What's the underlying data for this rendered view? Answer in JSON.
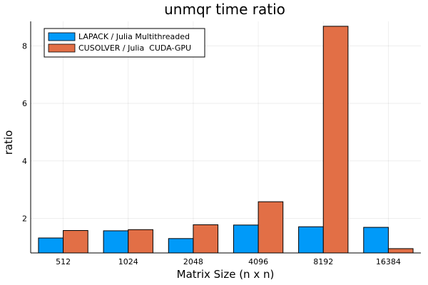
{
  "chart_data": {
    "type": "bar",
    "title": "unmqr time ratio",
    "xlabel": "Matrix Size (n x n)",
    "ylabel": "ratio",
    "categories": [
      "512",
      "1024",
      "2048",
      "4096",
      "8192",
      "16384"
    ],
    "series": [
      {
        "name": "LAPACK / Julia Multithreaded",
        "color": "#009af9",
        "values": [
          1.32,
          1.57,
          1.3,
          1.77,
          1.71,
          1.69
        ]
      },
      {
        "name": "CUSOLVER / Julia  CUDA-GPU",
        "color": "#e26f46",
        "values": [
          1.58,
          1.61,
          1.78,
          2.58,
          8.68,
          0.95
        ]
      }
    ],
    "ylim": [
      0.8,
      8.85
    ],
    "yticks": [
      2,
      4,
      6,
      8
    ],
    "grid": true,
    "legend_position": "top-left"
  }
}
